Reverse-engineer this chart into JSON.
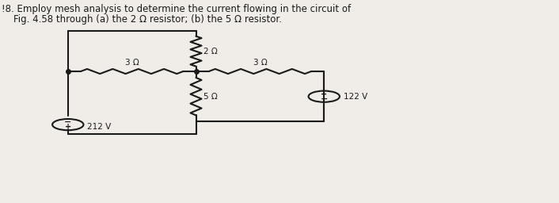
{
  "title_line1": "!8. Employ mesh analysis to determine the current flowing in the circuit of",
  "title_line2": "    Fig. 4.58 through (a) the 2 Ω resistor; (b) the 5 Ω resistor.",
  "bg_color": "#f0ede8",
  "line_color": "#1a1a1a",
  "text_color": "#1a1a1a",
  "resistor_2_label": "2 Ω",
  "resistor_3a_label": "3 Ω",
  "resistor_3b_label": "3 Ω",
  "resistor_5_label": "5 Ω",
  "voltage1_label": "212 V",
  "voltage2_label": "122 V",
  "figsize": [
    7.06,
    2.56
  ],
  "dpi": 100
}
